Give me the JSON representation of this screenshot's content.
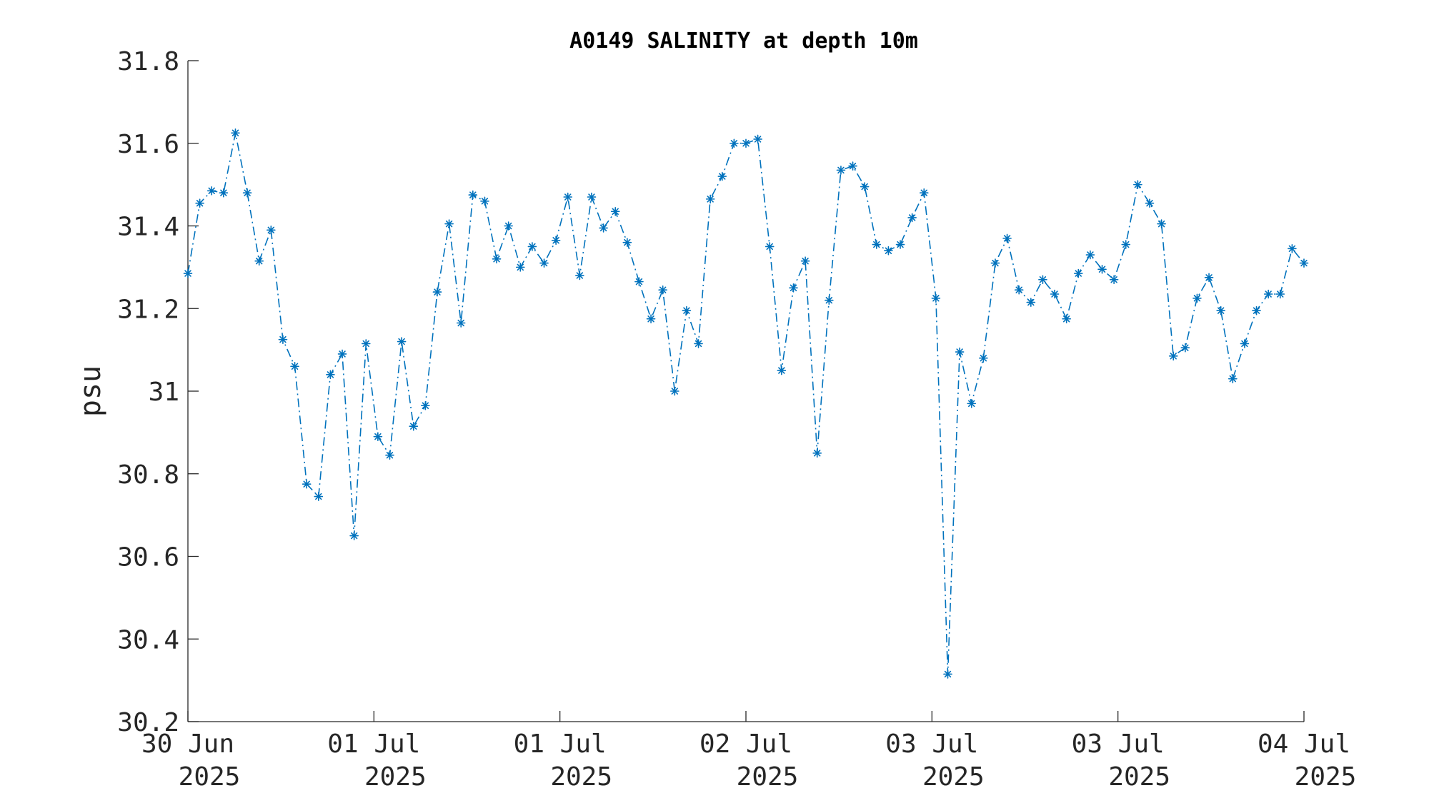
{
  "chart_data": {
    "type": "line",
    "title": "A0149 SALINITY at depth 10m",
    "xlabel": "",
    "ylabel": "psu",
    "ylim": [
      30.2,
      31.8
    ],
    "yticks": [
      "30.2",
      "30.4",
      "30.6",
      "30.8",
      "31",
      "31.2",
      "31.4",
      "31.6",
      "31.8"
    ],
    "xticks": [
      {
        "day": "30 Jun",
        "year": "2025"
      },
      {
        "day": "01 Jul",
        "year": "2025"
      },
      {
        "day": "01 Jul",
        "year": "2025"
      },
      {
        "day": "02 Jul",
        "year": "2025"
      },
      {
        "day": "03 Jul",
        "year": "2025"
      },
      {
        "day": "03 Jul",
        "year": "2025"
      },
      {
        "day": "04 Jul",
        "year": "2025"
      }
    ],
    "grid": false,
    "line_style": "dash-dot",
    "marker": "asterisk",
    "color": "#0072BD",
    "series": [
      {
        "values": [
          31.285,
          31.455,
          31.485,
          31.48,
          31.625,
          31.48,
          31.315,
          31.39,
          31.125,
          31.06,
          30.775,
          30.745,
          31.04,
          31.09,
          30.65,
          31.115,
          30.89,
          30.845,
          31.12,
          30.915,
          30.965,
          31.24,
          31.405,
          31.165,
          31.475,
          31.46,
          31.32,
          31.4,
          31.3,
          31.35,
          31.31,
          31.365,
          31.47,
          31.28,
          31.47,
          31.395,
          31.435,
          31.36,
          31.265,
          31.175,
          31.245,
          31.0,
          31.195,
          31.115,
          31.465,
          31.52,
          31.6,
          31.6,
          31.61,
          31.35,
          31.05,
          31.25,
          31.315,
          30.85,
          31.22,
          31.535,
          31.545,
          31.495,
          31.355,
          31.34,
          31.355,
          31.42,
          31.48,
          31.225,
          30.315,
          31.095,
          30.97,
          31.08,
          31.31,
          31.37,
          31.245,
          31.215,
          31.27,
          31.235,
          31.175,
          31.285,
          31.33,
          31.295,
          31.27,
          31.355,
          31.5,
          31.455,
          31.405,
          31.085,
          31.105,
          31.225,
          31.275,
          31.195,
          31.03,
          31.115,
          31.195,
          31.235,
          31.235,
          31.345,
          31.31
        ]
      }
    ]
  }
}
